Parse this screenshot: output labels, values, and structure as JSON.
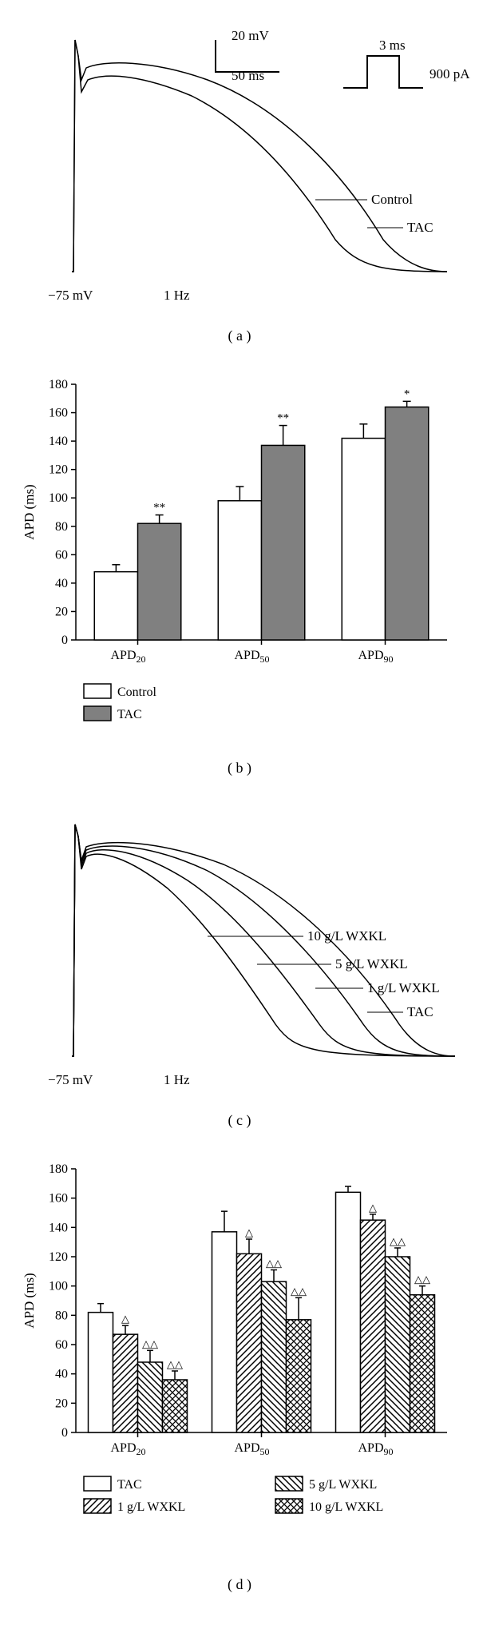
{
  "panel_a": {
    "type": "line",
    "scale_v": "20 mV",
    "scale_h": "50 ms",
    "stim_label_top": "3 ms",
    "stim_label_side": "900 pA",
    "rmp_label": "−75 mV",
    "freq_label": "1 Hz",
    "trace_labels": {
      "control": "Control",
      "tac": "TAC"
    },
    "caption": "( a )",
    "colors": {
      "stroke": "#000000",
      "bg": "#ffffff"
    }
  },
  "panel_b": {
    "type": "bar",
    "ylabel": "APD (ms)",
    "ylim": [
      0,
      180
    ],
    "ytick_step": 20,
    "categories": [
      "APD",
      "APD",
      "APD"
    ],
    "cat_subs": [
      "20",
      "50",
      "90"
    ],
    "series": [
      {
        "name": "Control",
        "fill": "#ffffff",
        "stroke": "#000000",
        "values": [
          48,
          98,
          142
        ],
        "errors": [
          5,
          10,
          10
        ],
        "sig": [
          "",
          "",
          ""
        ]
      },
      {
        "name": "TAC",
        "fill": "#808080",
        "stroke": "#000000",
        "values": [
          82,
          137,
          164
        ],
        "errors": [
          6,
          14,
          4
        ],
        "sig": [
          "**",
          "**",
          "*"
        ]
      }
    ],
    "bar_width": 0.35,
    "caption": "( b )",
    "colors": {
      "axis": "#000000",
      "bg": "#ffffff",
      "text": "#000000"
    },
    "font_size": 16
  },
  "panel_c": {
    "type": "line",
    "rmp_label": "−75 mV",
    "freq_label": "1 Hz",
    "trace_labels": [
      "10 g/L WXKL",
      "5 g/L WXKL",
      "1 g/L WXKL",
      "TAC"
    ],
    "caption": "( c )",
    "colors": {
      "stroke": "#000000",
      "bg": "#ffffff"
    }
  },
  "panel_d": {
    "type": "bar",
    "ylabel": "APD (ms)",
    "ylim": [
      0,
      180
    ],
    "ytick_step": 20,
    "categories": [
      "APD",
      "APD",
      "APD"
    ],
    "cat_subs": [
      "20",
      "50",
      "90"
    ],
    "series": [
      {
        "name": "TAC",
        "pattern": "none",
        "values": [
          82,
          137,
          164
        ],
        "errors": [
          6,
          14,
          4
        ],
        "sig": [
          "",
          "",
          ""
        ]
      },
      {
        "name": "1 g/L WXKL",
        "pattern": "diag1",
        "values": [
          67,
          122,
          145
        ],
        "errors": [
          6,
          10,
          4
        ],
        "sig": [
          "△",
          "△",
          "△"
        ]
      },
      {
        "name": "5 g/L WXKL",
        "pattern": "diag2",
        "values": [
          48,
          103,
          120
        ],
        "errors": [
          8,
          8,
          6
        ],
        "sig": [
          "△△",
          "△△",
          "△△"
        ]
      },
      {
        "name": "10 g/L WXKL",
        "pattern": "cross",
        "values": [
          36,
          77,
          94
        ],
        "errors": [
          6,
          15,
          6
        ],
        "sig": [
          "△△",
          "△△",
          "△△"
        ]
      }
    ],
    "bar_width": 0.2,
    "caption": "( d )",
    "colors": {
      "axis": "#000000",
      "bg": "#ffffff",
      "text": "#000000"
    },
    "font_size": 16
  }
}
